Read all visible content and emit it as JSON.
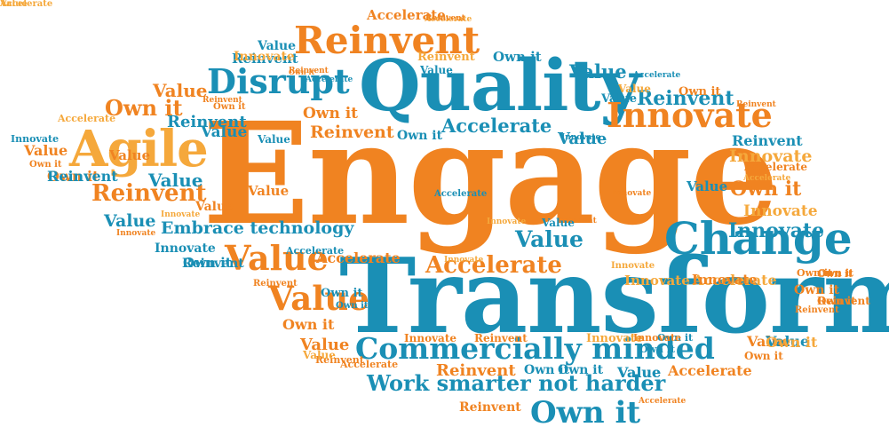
{
  "palette": {
    "orange": "#f08321",
    "teal": "#1a8fb5",
    "light_orange": "#f5a83b"
  },
  "words": [
    {
      "text": "Engage",
      "color": "orange"
    },
    {
      "text": "Transform",
      "color": "teal"
    },
    {
      "text": "Quality",
      "color": "teal"
    },
    {
      "text": "Agile",
      "color": "light_orange"
    },
    {
      "text": "Change",
      "color": "teal"
    },
    {
      "text": "Reinvent",
      "color": "orange"
    },
    {
      "text": "Disrupt",
      "color": "teal"
    },
    {
      "text": "Innovate",
      "color": "orange"
    },
    {
      "text": "Commercially minded",
      "color": "teal"
    },
    {
      "text": "Work smarter not harder",
      "color": "teal"
    },
    {
      "text": "Embrace technology",
      "color": "teal"
    },
    {
      "text": "Own it",
      "color": "teal"
    },
    {
      "text": "Value",
      "color": "orange"
    },
    {
      "text": "Value",
      "color": "orange"
    },
    {
      "text": "Accelerate",
      "color": "orange"
    },
    {
      "text": "Accelerate",
      "color": "teal"
    },
    {
      "text": "Accelerate",
      "color": "orange"
    },
    {
      "text": "Accelerate",
      "color": "light_orange"
    },
    {
      "text": "Accelerate",
      "color": "light_orange"
    },
    {
      "text": "Accelerate",
      "color": "orange"
    },
    {
      "text": "Accelerate",
      "color": "light_orange"
    },
    {
      "text": "Accelerate",
      "color": "teal"
    },
    {
      "text": "Accelerate",
      "color": "orange"
    },
    {
      "text": "Accelerate",
      "color": "orange"
    },
    {
      "text": "Accelerate",
      "color": "teal"
    },
    {
      "text": "Accelerate",
      "color": "teal"
    },
    {
      "text": "Accelerate",
      "color": "orange"
    },
    {
      "text": "Accelerate",
      "color": "light_orange"
    },
    {
      "text": "Accelerate",
      "color": "teal"
    },
    {
      "text": "Accelerate",
      "color": "orange"
    },
    {
      "text": "Reinvent",
      "color": "teal"
    },
    {
      "text": "Reinvent",
      "color": "orange"
    },
    {
      "text": "Reinvent",
      "color": "orange"
    },
    {
      "text": "Reinvent",
      "color": "orange"
    },
    {
      "text": "Reinvent",
      "color": "orange"
    },
    {
      "text": "Reinvent",
      "color": "teal"
    },
    {
      "text": "Reinvent",
      "color": "teal"
    },
    {
      "text": "Reinvent",
      "color": "teal"
    },
    {
      "text": "Reinvent",
      "color": "orange"
    },
    {
      "text": "Reinvent",
      "color": "orange"
    },
    {
      "text": "Reinvent",
      "color": "light_orange"
    },
    {
      "text": "Reinvent",
      "color": "orange"
    },
    {
      "text": "Reinvent",
      "color": "orange"
    },
    {
      "text": "Reinvent",
      "color": "orange"
    },
    {
      "text": "Reinvent",
      "color": "orange"
    },
    {
      "text": "Reinvent",
      "color": "orange"
    },
    {
      "text": "Reinvent",
      "color": "orange"
    },
    {
      "text": "Own it",
      "color": "teal"
    },
    {
      "text": "Own it",
      "color": "orange"
    },
    {
      "text": "Own it",
      "color": "orange"
    },
    {
      "text": "Own it",
      "color": "orange"
    },
    {
      "text": "Own it",
      "color": "teal"
    },
    {
      "text": "Own it",
      "color": "orange"
    },
    {
      "text": "Own it",
      "color": "orange"
    },
    {
      "text": "Own it",
      "color": "orange"
    },
    {
      "text": "Own it",
      "color": "orange"
    },
    {
      "text": "Own it",
      "color": "teal"
    },
    {
      "text": "Own it",
      "color": "teal"
    },
    {
      "text": "Own it",
      "color": "teal"
    },
    {
      "text": "Own it",
      "color": "teal"
    },
    {
      "text": "Own it",
      "color": "orange"
    },
    {
      "text": "Own it",
      "color": "orange"
    },
    {
      "text": "Own it",
      "color": "orange"
    },
    {
      "text": "Own it",
      "color": "orange"
    },
    {
      "text": "Own it",
      "color": "teal"
    },
    {
      "text": "Own it",
      "color": "teal"
    },
    {
      "text": "Own it",
      "color": "teal"
    },
    {
      "text": "Own it",
      "color": "orange"
    },
    {
      "text": "Value",
      "color": "teal"
    },
    {
      "text": "Value",
      "color": "teal"
    },
    {
      "text": "Value",
      "color": "teal"
    },
    {
      "text": "Value",
      "color": "orange"
    },
    {
      "text": "Value",
      "color": "orange"
    },
    {
      "text": "Value",
      "color": "orange"
    },
    {
      "text": "Value",
      "color": "teal"
    },
    {
      "text": "Value",
      "color": "teal"
    },
    {
      "text": "Value",
      "color": "teal"
    },
    {
      "text": "Value",
      "color": "teal"
    },
    {
      "text": "Value",
      "color": "teal"
    },
    {
      "text": "Value",
      "color": "orange"
    },
    {
      "text": "Value",
      "color": "orange"
    },
    {
      "text": "Value",
      "color": "teal"
    },
    {
      "text": "Value",
      "color": "teal"
    },
    {
      "text": "Value",
      "color": "orange"
    },
    {
      "text": "Value",
      "color": "teal"
    },
    {
      "text": "Value",
      "color": "teal"
    },
    {
      "text": "Value",
      "color": "teal"
    },
    {
      "text": "Value",
      "color": "light_orange"
    },
    {
      "text": "Value",
      "color": "orange"
    },
    {
      "text": "Value",
      "color": "teal"
    },
    {
      "text": "Value",
      "color": "teal"
    },
    {
      "text": "Value",
      "color": "light_orange"
    },
    {
      "text": "Innovate",
      "color": "light_orange"
    },
    {
      "text": "Innovate",
      "color": "light_orange"
    },
    {
      "text": "Innovate",
      "color": "light_orange"
    },
    {
      "text": "Innovate",
      "color": "teal"
    },
    {
      "text": "Innovate",
      "color": "teal"
    },
    {
      "text": "Innovate",
      "color": "orange"
    },
    {
      "text": "Innovate",
      "color": "teal"
    },
    {
      "text": "Innovate",
      "color": "light_orange"
    },
    {
      "text": "Innovate",
      "color": "teal"
    },
    {
      "text": "Innovate",
      "color": "light_orange"
    },
    {
      "text": "Innovate",
      "color": "light_orange"
    },
    {
      "text": "Innovate",
      "color": "orange"
    },
    {
      "text": "Innovate",
      "color": "light_orange"
    },
    {
      "text": "Innovate",
      "color": "orange"
    },
    {
      "text": "Innovate",
      "color": "orange"
    },
    {
      "text": "Innovate",
      "color": "orange"
    },
    {
      "text": "Innovate",
      "color": "light_orange"
    },
    {
      "text": "Innovate",
      "color": "light_orange"
    },
    {
      "text": "Reinvent",
      "color": "teal"
    },
    {
      "text": "Reinvent",
      "color": "teal"
    },
    {
      "text": "Own it",
      "color": "orange"
    },
    {
      "text": "Own it",
      "color": "orange"
    },
    {
      "text": "Own it",
      "color": "orange"
    },
    {
      "text": "Reinvent",
      "color": "orange"
    },
    {
      "text": "Reinvent",
      "color": "orange"
    },
    {
      "text": "Own it",
      "color": "light_orange"
    },
    {
      "text": "Accelerate",
      "color": "light_orange"
    },
    {
      "text": "Value",
      "color": "light_orange"
    }
  ]
}
